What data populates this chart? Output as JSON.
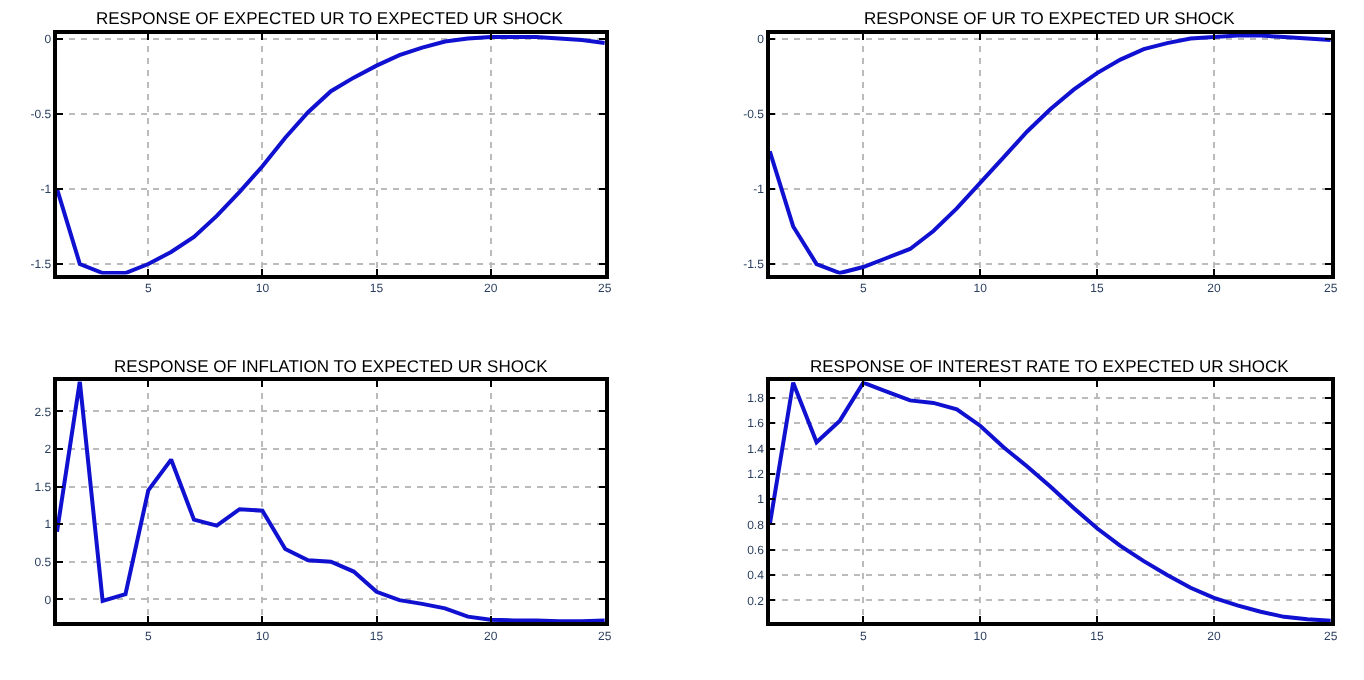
{
  "chart_data": [
    {
      "type": "line",
      "title": "RESPONSE OF EXPECTED UR TO EXPECTED UR SHOCK",
      "x": [
        1,
        2,
        3,
        4,
        5,
        6,
        7,
        8,
        9,
        10,
        11,
        12,
        13,
        14,
        15,
        16,
        17,
        18,
        19,
        20,
        21,
        22,
        23,
        24,
        25
      ],
      "series": [
        {
          "color": "#1010d0",
          "values": [
            -1.0,
            -1.5,
            -1.56,
            -1.56,
            -1.5,
            -1.42,
            -1.32,
            -1.18,
            -1.02,
            -0.85,
            -0.66,
            -0.49,
            -0.35,
            -0.26,
            -0.18,
            -0.11,
            -0.06,
            -0.02,
            0.0,
            0.01,
            0.01,
            0.01,
            0.0,
            -0.01,
            -0.03
          ]
        }
      ],
      "xlim": [
        1,
        25
      ],
      "xticks": [
        5,
        10,
        15,
        20,
        25
      ],
      "ylim": [
        -1.57,
        0.03
      ],
      "yticks": [
        -1.5,
        -1,
        -0.5,
        0
      ],
      "grid": true
    },
    {
      "type": "line",
      "title": "RESPONSE OF UR TO EXPECTED UR SHOCK",
      "x": [
        1,
        2,
        3,
        4,
        5,
        6,
        7,
        8,
        9,
        10,
        11,
        12,
        13,
        14,
        15,
        16,
        17,
        18,
        19,
        20,
        21,
        22,
        23,
        24,
        25
      ],
      "series": [
        {
          "color": "#1010d0",
          "values": [
            -0.75,
            -1.25,
            -1.5,
            -1.56,
            -1.52,
            -1.46,
            -1.4,
            -1.28,
            -1.13,
            -0.96,
            -0.79,
            -0.62,
            -0.47,
            -0.34,
            -0.23,
            -0.14,
            -0.07,
            -0.03,
            0.0,
            0.01,
            0.02,
            0.02,
            0.01,
            0.0,
            -0.01
          ]
        }
      ],
      "xlim": [
        1,
        25
      ],
      "xticks": [
        5,
        10,
        15,
        20,
        25
      ],
      "ylim": [
        -1.57,
        0.03
      ],
      "yticks": [
        -1.5,
        -1,
        -0.5,
        0
      ],
      "grid": true
    },
    {
      "type": "line",
      "title": "RESPONSE OF INFLATION TO EXPECTED UR SHOCK",
      "x": [
        1,
        2,
        3,
        4,
        5,
        6,
        7,
        8,
        9,
        10,
        11,
        12,
        13,
        14,
        15,
        16,
        17,
        18,
        19,
        20,
        21,
        22,
        23,
        24,
        25
      ],
      "series": [
        {
          "color": "#1010d0",
          "values": [
            0.9,
            2.9,
            -0.02,
            0.07,
            1.45,
            1.86,
            1.06,
            0.98,
            1.2,
            1.18,
            0.67,
            0.52,
            0.5,
            0.37,
            0.1,
            -0.01,
            -0.06,
            -0.12,
            -0.23,
            -0.27,
            -0.28,
            -0.28,
            -0.29,
            -0.29,
            -0.28
          ]
        }
      ],
      "xlim": [
        1,
        25
      ],
      "xticks": [
        5,
        10,
        15,
        20,
        25
      ],
      "ylim": [
        -0.3,
        2.9
      ],
      "yticks": [
        0,
        0.5,
        1,
        1.5,
        2,
        2.5
      ],
      "grid": true
    },
    {
      "type": "line",
      "title": "RESPONSE OF INTEREST RATE TO EXPECTED UR SHOCK",
      "x": [
        1,
        2,
        3,
        4,
        5,
        6,
        7,
        8,
        9,
        10,
        11,
        12,
        13,
        14,
        15,
        16,
        17,
        18,
        19,
        20,
        21,
        22,
        23,
        24,
        25
      ],
      "series": [
        {
          "color": "#1010d0",
          "values": [
            0.8,
            1.92,
            1.45,
            1.62,
            1.92,
            1.85,
            1.78,
            1.76,
            1.71,
            1.58,
            1.41,
            1.26,
            1.1,
            0.93,
            0.77,
            0.63,
            0.51,
            0.4,
            0.3,
            0.22,
            0.16,
            0.11,
            0.07,
            0.05,
            0.04
          ]
        }
      ],
      "xlim": [
        1,
        25
      ],
      "xticks": [
        5,
        10,
        15,
        20,
        25
      ],
      "ylim": [
        0.03,
        1.93
      ],
      "yticks": [
        0.2,
        0.4,
        0.6,
        0.8,
        1,
        1.2,
        1.4,
        1.6,
        1.8
      ],
      "grid": true
    }
  ]
}
